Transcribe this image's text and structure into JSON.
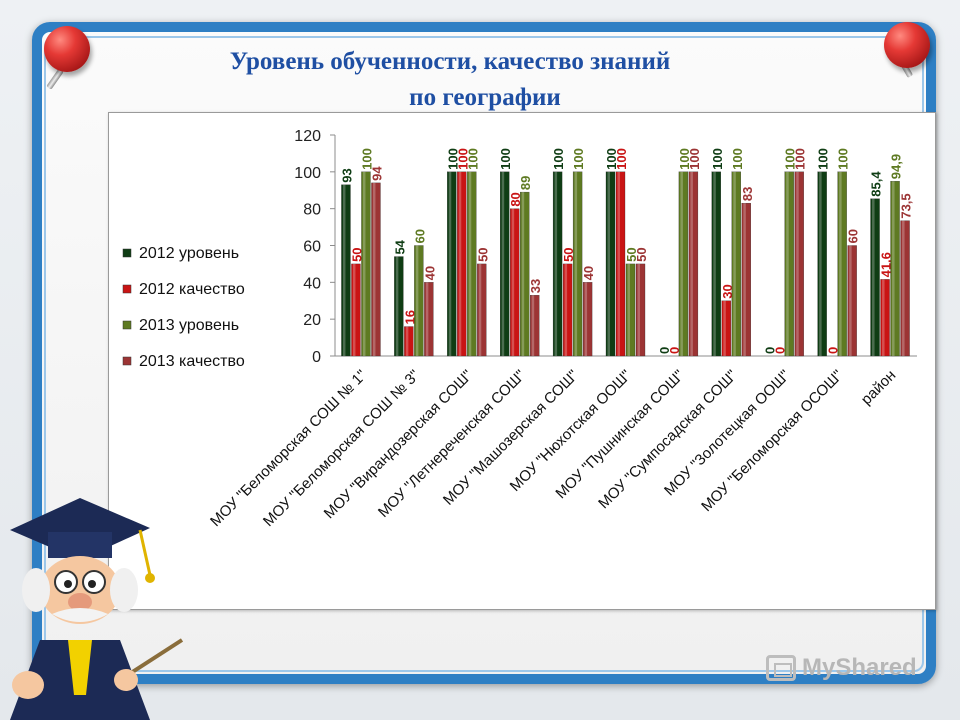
{
  "slide": {
    "title_line1": "Уровень обученности, качество знаний",
    "title_line2": "по географии"
  },
  "watermark": {
    "text": "MyShared",
    "icon": "projector-icon"
  },
  "colors": {
    "series": [
      "#0f3d14",
      "#c91414",
      "#5e7a22",
      "#9c3434"
    ],
    "frame": "#2e7fc4",
    "title": "#1f4fa3"
  },
  "chart_data": {
    "type": "bar",
    "title": "",
    "xlabel": "",
    "ylabel": "",
    "ylim": [
      0,
      120
    ],
    "yticks": [
      "0",
      "20",
      "40",
      "60",
      "80",
      "100",
      "120"
    ],
    "grid": false,
    "legend_position": "left",
    "categories": [
      "МОУ \"Беломорская СОШ № 1\"",
      "МОУ \"Беломорская СОШ № 3\"",
      "МОУ \"Вирандозерская СОШ\"",
      "МОУ \"Летнереченская СОШ\"",
      "МОУ \"Машозерская СОШ\"",
      "МОУ \"Нюхотская ООШ\"",
      "МОУ \"Пушнинская СОШ\"",
      "МОУ \"Сумпосадская СОШ\"",
      "МОУ \"Золотецкая ООШ\"",
      "МОУ \"Беломорская ОСОШ\"",
      "район"
    ],
    "series": [
      {
        "name": "2012 уровень",
        "values": [
          93,
          54,
          100,
          100,
          100,
          100,
          0,
          100,
          0,
          100,
          85.4
        ],
        "labels": [
          "93",
          "54",
          "100",
          "100",
          "100",
          "100",
          "0",
          "100",
          "0",
          "100",
          "85,4"
        ]
      },
      {
        "name": "2012 качество",
        "values": [
          50,
          16,
          100,
          80,
          50,
          100,
          0,
          30,
          0,
          0,
          41.6
        ],
        "labels": [
          "50",
          "16",
          "100",
          "80",
          "50",
          "100",
          "0",
          "30",
          "0",
          "0",
          "41,6"
        ]
      },
      {
        "name": "2013 уровень",
        "values": [
          100,
          60,
          100,
          89,
          100,
          50,
          100,
          100,
          100,
          100,
          94.9
        ],
        "labels": [
          "100",
          "60",
          "100",
          "89",
          "100",
          "50",
          "100",
          "100",
          "100",
          "100",
          "94,9"
        ]
      },
      {
        "name": "2013 качество",
        "values": [
          94,
          40,
          50,
          33,
          40,
          50,
          100,
          83,
          100,
          60,
          73.5
        ],
        "labels": [
          "94",
          "40",
          "50",
          "33",
          "40",
          "50",
          "100",
          "83",
          "100",
          "60",
          "73,5"
        ]
      }
    ]
  }
}
